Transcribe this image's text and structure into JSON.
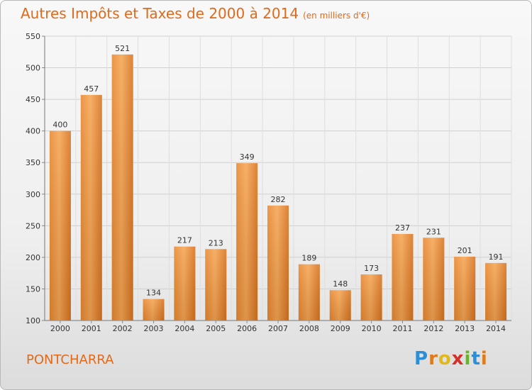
{
  "header": {
    "title": "Autres Impôts et Taxes de 2000 à 2014",
    "subtitle": "(en milliers d'€)"
  },
  "footer": {
    "city": "PONTCHARRA",
    "logo": "Proxiti"
  },
  "colors": {
    "accent": "#e06a1a",
    "bar_light": "#f6a553",
    "bar_dark": "#d8731f"
  },
  "chart_data": {
    "type": "bar",
    "title": "Autres Impôts et Taxes de 2000 à 2014",
    "xlabel": "",
    "ylabel": "",
    "categories": [
      "2000",
      "2001",
      "2002",
      "2003",
      "2004",
      "2005",
      "2006",
      "2007",
      "2008",
      "2009",
      "2010",
      "2011",
      "2012",
      "2013",
      "2014"
    ],
    "values": [
      400,
      457,
      521,
      134,
      217,
      213,
      349,
      282,
      189,
      148,
      173,
      237,
      231,
      201,
      191
    ],
    "ylim": [
      100,
      550
    ],
    "yticks": [
      100,
      150,
      200,
      250,
      300,
      350,
      400,
      450,
      500,
      550
    ],
    "grid": true
  }
}
